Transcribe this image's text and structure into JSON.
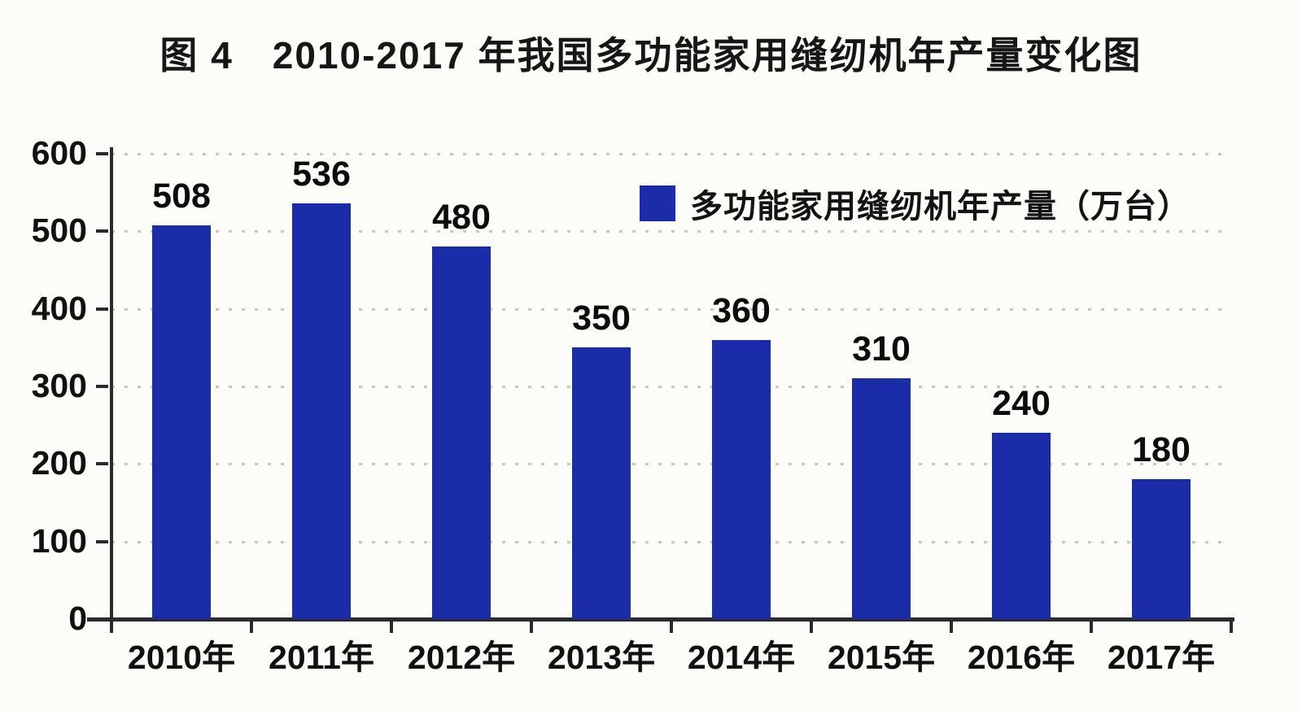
{
  "title": "图 4　2010-2017 年我国多功能家用缝纫机年产量变化图",
  "legend": {
    "label": "多功能家用缝纫机年产量（万台）"
  },
  "colors": {
    "bar": "#1b2ca8",
    "axis": "#2a2a30",
    "grid": "#9a9a9a",
    "text": "#111111",
    "background": "#fcfcf9"
  },
  "chart_data": {
    "type": "bar",
    "title": "图 4　2010-2017 年我国多功能家用缝纫机年产量变化图",
    "categories": [
      "2010年",
      "2011年",
      "2012年",
      "2013年",
      "2014年",
      "2015年",
      "2016年",
      "2017年"
    ],
    "series": [
      {
        "name": "多功能家用缝纫机年产量（万台）",
        "values": [
          508,
          536,
          480,
          350,
          360,
          310,
          240,
          180
        ]
      }
    ],
    "values": [
      508,
      536,
      480,
      350,
      360,
      310,
      240,
      180
    ],
    "data_labels": [
      508,
      536,
      480,
      350,
      360,
      310,
      240,
      180
    ],
    "xlabel": "",
    "ylabel": "",
    "ylim": [
      0,
      600
    ],
    "yticks": [
      0,
      100,
      200,
      300,
      400,
      500,
      600
    ],
    "grid": "horizontal-dotted",
    "legend_position": "inside-upper-right"
  }
}
